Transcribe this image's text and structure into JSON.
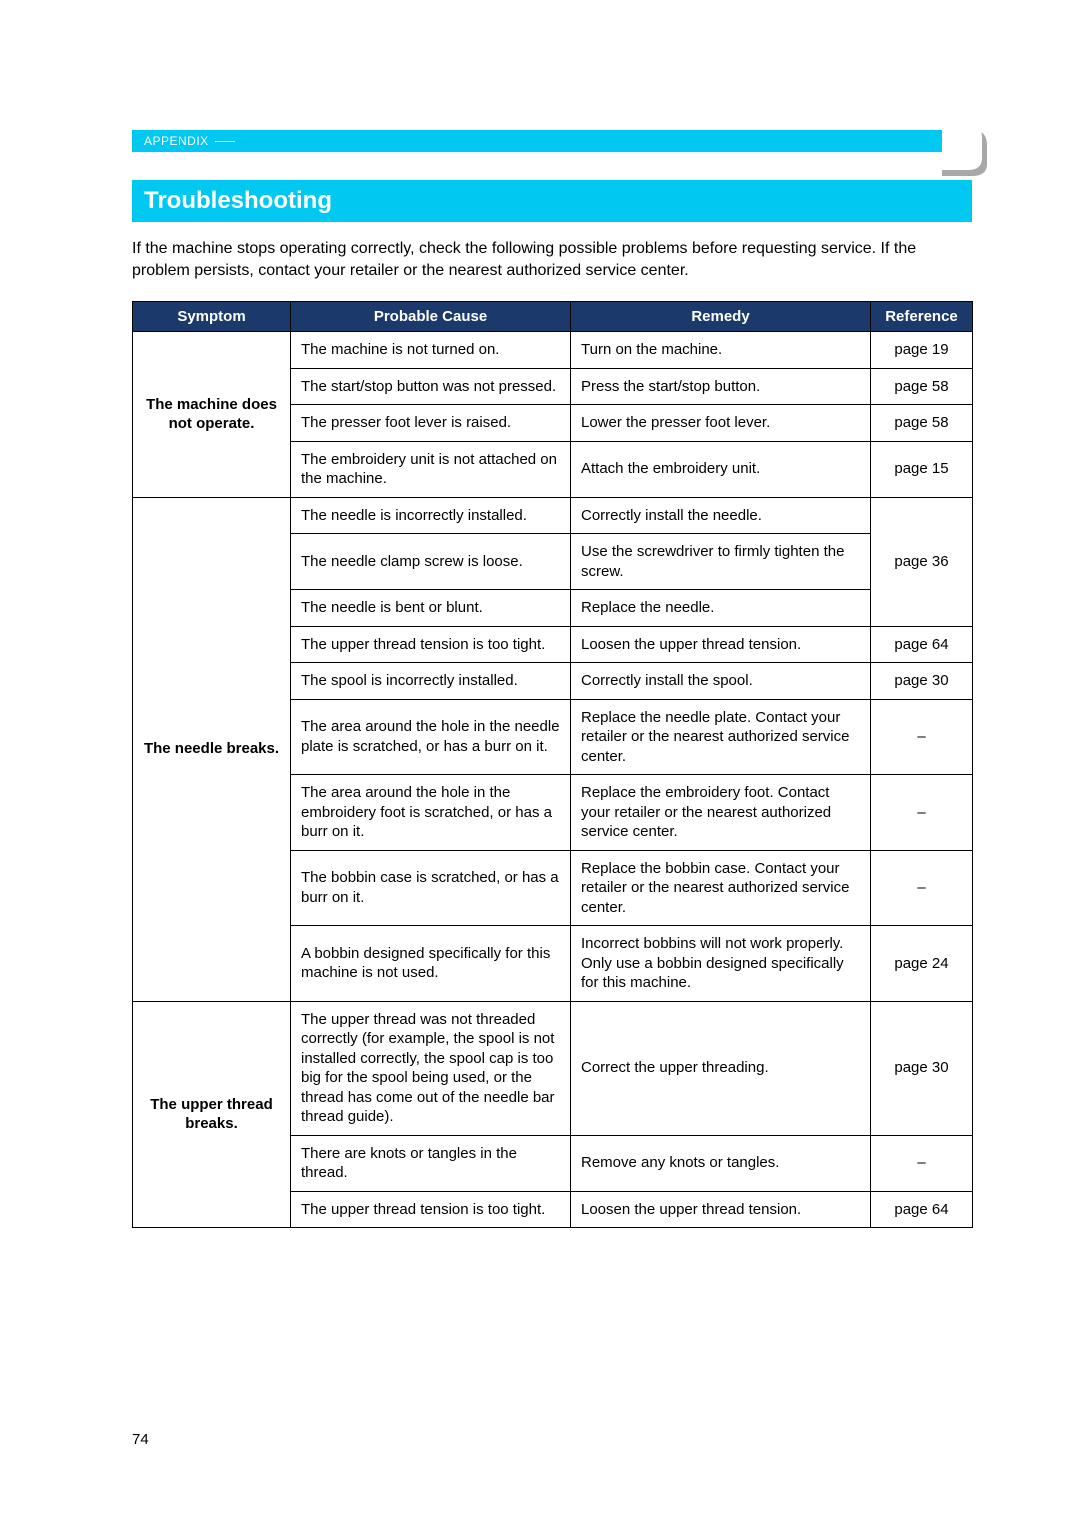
{
  "appendix_label": "APPENDIX",
  "section_title": "Troubleshooting",
  "intro_text": "If the machine stops operating correctly, check the following possible problems before requesting service. If the problem persists, contact your retailer or the nearest authorized service center.",
  "page_number": "74",
  "table": {
    "headers": {
      "symptom": "Symptom",
      "cause": "Probable Cause",
      "remedy": "Remedy",
      "reference": "Reference"
    },
    "groups": [
      {
        "symptom": "The machine does not operate.",
        "rows": [
          {
            "cause": "The machine is not turned on.",
            "remedy": "Turn on the machine.",
            "reference": "page 19"
          },
          {
            "cause": "The start/stop button was not pressed.",
            "remedy": "Press the start/stop button.",
            "reference": "page 58"
          },
          {
            "cause": "The presser foot lever is raised.",
            "remedy": "Lower the presser foot lever.",
            "reference": "page 58"
          },
          {
            "cause": "The embroidery unit is not attached on the machine.",
            "remedy": "Attach the embroidery unit.",
            "reference": "page 15"
          }
        ]
      },
      {
        "symptom": "The needle breaks.",
        "rows": [
          {
            "cause": "The needle is incorrectly installed.",
            "remedy": "Correctly install the needle.",
            "reference_merge": 3,
            "reference": "page 36"
          },
          {
            "cause": "The needle clamp screw is loose.",
            "remedy": "Use the screwdriver to firmly tighten the screw."
          },
          {
            "cause": "The needle is bent or blunt.",
            "remedy": "Replace the needle."
          },
          {
            "cause": "The upper thread tension is too tight.",
            "remedy": "Loosen the upper thread tension.",
            "reference": "page 64"
          },
          {
            "cause": "The spool is incorrectly installed.",
            "remedy": "Correctly install the spool.",
            "reference": "page 30"
          },
          {
            "cause": "The area around the hole in the needle plate is scratched, or has a burr on it.",
            "remedy": "Replace the needle plate. Contact your retailer or the nearest authorized service center.",
            "reference": "–"
          },
          {
            "cause": "The area around the hole in the embroidery foot is scratched, or has a burr on it.",
            "remedy": "Replace the embroidery foot. Contact your retailer or the nearest authorized service center.",
            "reference": "–"
          },
          {
            "cause": "The bobbin case is scratched, or has a burr on it.",
            "remedy": "Replace the bobbin case. Contact your retailer or the nearest authorized service center.",
            "reference": "–"
          },
          {
            "cause": "A bobbin designed specifically for this machine is not used.",
            "remedy": "Incorrect bobbins will not work properly. Only use a bobbin designed specifically for this machine.",
            "reference": "page 24"
          }
        ]
      },
      {
        "symptom": "The upper thread breaks.",
        "rows": [
          {
            "cause": "The upper thread was not threaded correctly (for example, the spool is not installed correctly, the spool cap is too big for the spool being used, or the thread has come out of the needle bar thread guide).",
            "remedy": "Correct the upper threading.",
            "reference": "page 30"
          },
          {
            "cause": "There are knots or tangles in the thread.",
            "remedy": "Remove any knots or tangles.",
            "reference": "–"
          },
          {
            "cause": "The upper thread tension is too tight.",
            "remedy": "Loosen the upper thread tension.",
            "reference": "page 64"
          }
        ]
      }
    ]
  },
  "colors": {
    "header_bg": "#00c8f0",
    "table_header_bg": "#1b3a6b",
    "text": "#000000",
    "header_text": "#ffffff"
  }
}
